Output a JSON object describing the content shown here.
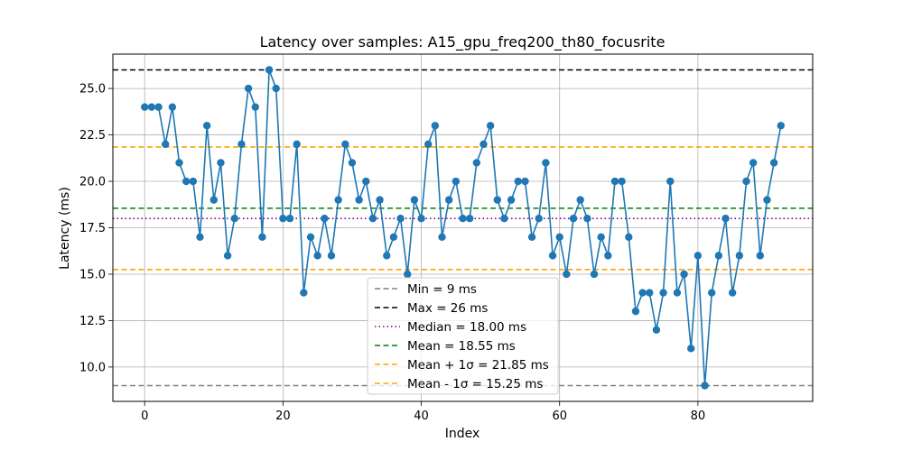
{
  "chart_data": {
    "type": "line",
    "title": "Latency over samples: A15_gpu_freq200_th80_focusrite",
    "xlabel": "Index",
    "ylabel": "Latency (ms)",
    "xlim": [
      -4.6,
      96.6
    ],
    "ylim": [
      8.15,
      26.85
    ],
    "xticks": [
      0,
      20,
      40,
      60,
      80
    ],
    "yticks": [
      10.0,
      12.5,
      15.0,
      17.5,
      20.0,
      22.5,
      25.0
    ],
    "ytick_labels": [
      "10.0",
      "12.5",
      "15.0",
      "17.5",
      "20.0",
      "22.5",
      "25.0"
    ],
    "grid": true,
    "series": [
      {
        "name": "",
        "color": "#1f77b4",
        "marker": "circle",
        "values": [
          24,
          24,
          24,
          22,
          24,
          21,
          20,
          20,
          17,
          23,
          19,
          21,
          16,
          18,
          22,
          25,
          24,
          17,
          26,
          25,
          18,
          18,
          22,
          14,
          17,
          16,
          18,
          16,
          19,
          22,
          21,
          19,
          20,
          18,
          19,
          16,
          17,
          18,
          15,
          19,
          18,
          22,
          23,
          17,
          19,
          20,
          18,
          18,
          21,
          22,
          23,
          19,
          18,
          19,
          20,
          20,
          17,
          18,
          21,
          16,
          17,
          15,
          18,
          19,
          18,
          15,
          17,
          16,
          20,
          20,
          17,
          13,
          14,
          14,
          12,
          14,
          20,
          14,
          15,
          11,
          16,
          9,
          14,
          16,
          18,
          14,
          16,
          20,
          21,
          16,
          19,
          21,
          23
        ]
      }
    ],
    "reference_lines": [
      {
        "label": "Min = 9 ms",
        "value": 9,
        "color": "#808080",
        "style": "dashed"
      },
      {
        "label": "Max = 26 ms",
        "value": 26,
        "color": "#000000",
        "style": "dashed"
      },
      {
        "label": "Median = 18.00 ms",
        "value": 18.0,
        "color": "#800080",
        "style": "dotted"
      },
      {
        "label": "Mean = 18.55 ms",
        "value": 18.55,
        "color": "#008000",
        "style": "dashed"
      },
      {
        "label": "Mean + 1σ = 21.85 ms",
        "value": 21.85,
        "color": "#ffa500",
        "style": "dashed"
      },
      {
        "label": "Mean - 1σ = 15.25 ms",
        "value": 15.25,
        "color": "#ffa500",
        "style": "dashed"
      }
    ],
    "legend_position": "lower-center"
  }
}
